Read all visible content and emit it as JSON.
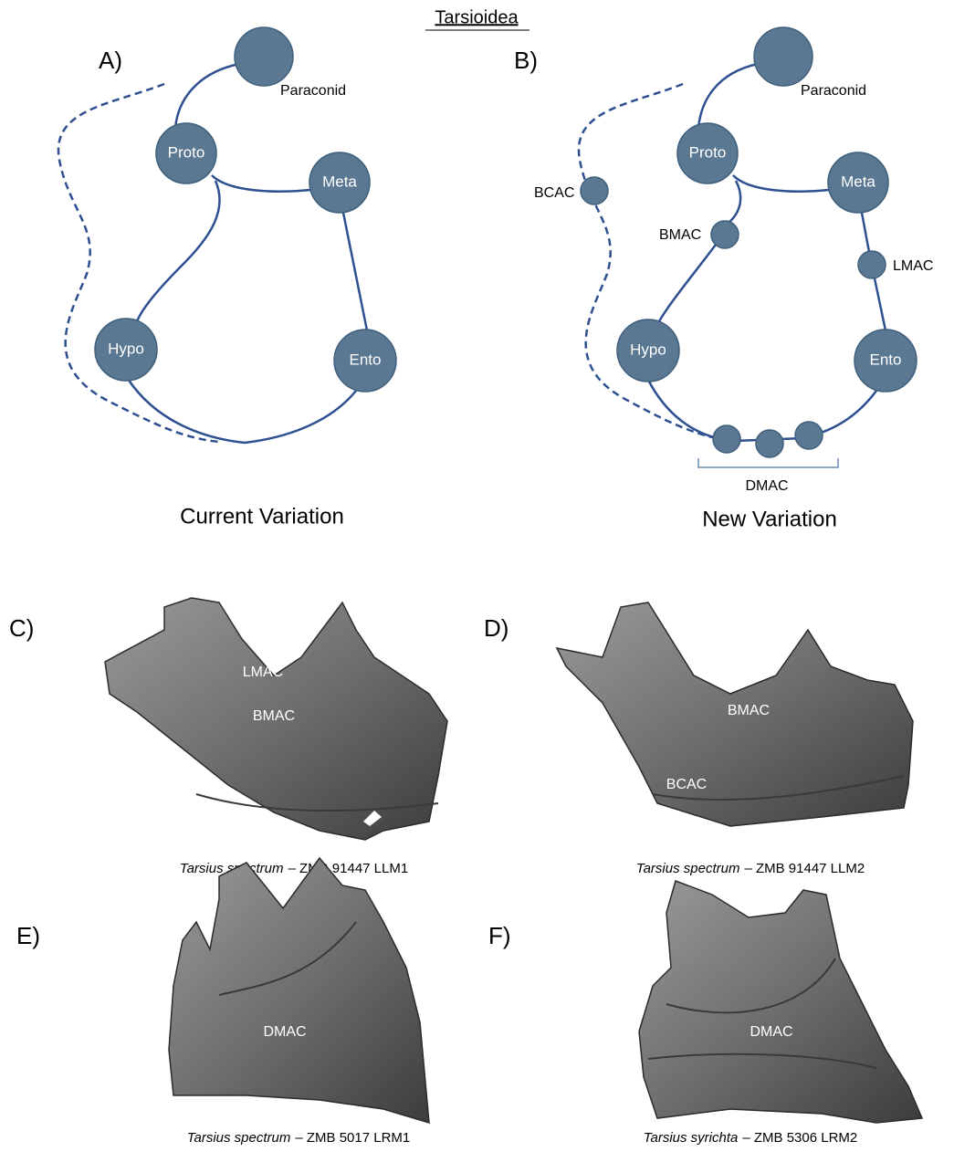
{
  "title": "Tarsioidea",
  "panel_a": {
    "label": "A)",
    "caption": "Current Variation",
    "nodes": [
      "Paraconid",
      "Proto",
      "Meta",
      "Hypo",
      "Ento"
    ]
  },
  "panel_b": {
    "label": "B)",
    "caption": "New Variation",
    "nodes": [
      "Paraconid",
      "Proto",
      "Meta",
      "BCAC",
      "BMAC",
      "LMAC",
      "Hypo",
      "Ento",
      "DMAC"
    ]
  },
  "panel_c": {
    "label": "C)",
    "annotations": [
      "LMAC",
      "BMAC"
    ],
    "species": "Tarsius spectrum",
    "specimen": "– ZMB 91447 LLM1"
  },
  "panel_d": {
    "label": "D)",
    "annotations": [
      "BMAC",
      "BCAC"
    ],
    "species": "Tarsius spectrum",
    "specimen": "– ZMB 91447 LLM2"
  },
  "panel_e": {
    "label": "E)",
    "annotations": [
      "DMAC"
    ],
    "species": "Tarsius spectrum",
    "specimen": "– ZMB 5017 LRM1"
  },
  "panel_f": {
    "label": "F)",
    "annotations": [
      "DMAC"
    ],
    "species": "Tarsius syrichta",
    "specimen": "– ZMB 5306 LRM2"
  }
}
